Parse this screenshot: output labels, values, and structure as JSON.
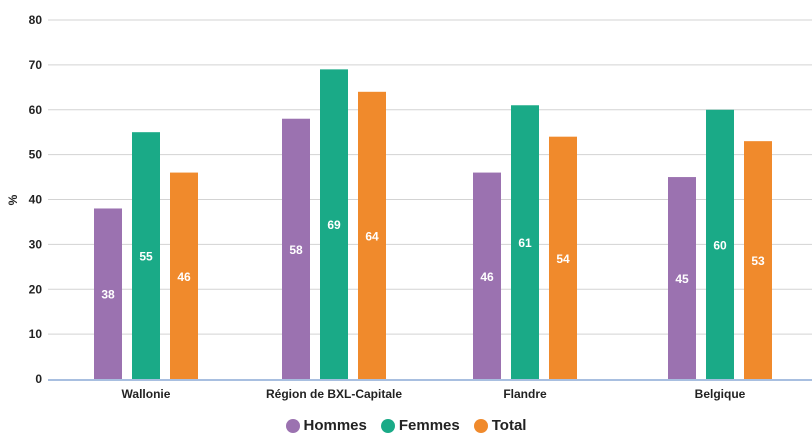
{
  "chart_data": {
    "type": "bar",
    "ylabel": "%",
    "xlabel": "",
    "ylim": [
      0,
      80
    ],
    "yticks": [
      0,
      10,
      20,
      30,
      40,
      50,
      60,
      70,
      80
    ],
    "grid": true,
    "legend_position": "bottom",
    "categories": [
      "Wallonie",
      "Région de BXL-Capitale",
      "Flandre",
      "Belgique"
    ],
    "series": [
      {
        "name": "Hommes",
        "color": "#9b72b0",
        "values": [
          38,
          58,
          46,
          45
        ],
        "labels": [
          "38",
          "58",
          "46",
          "45"
        ]
      },
      {
        "name": "Femmes",
        "color": "#1aaa87",
        "values": [
          55,
          69,
          61,
          60
        ],
        "labels": [
          "55",
          "69",
          "61",
          "60"
        ]
      },
      {
        "name": "Total",
        "color": "#f08a2c",
        "values": [
          46,
          64,
          54,
          53
        ],
        "labels": [
          "46",
          "64",
          "54",
          "53"
        ]
      }
    ]
  }
}
